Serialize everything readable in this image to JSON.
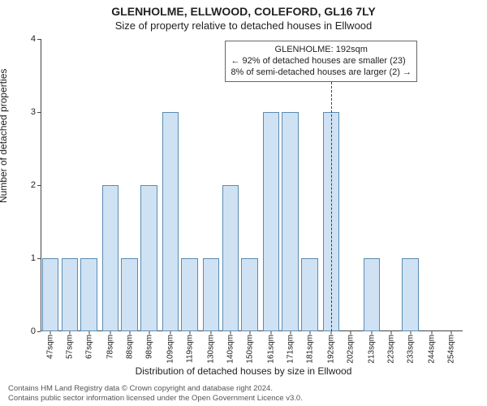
{
  "header": {
    "title": "GLENHOLME, ELLWOOD, COLEFORD, GL16 7LY",
    "subtitle": "Size of property relative to detached houses in Ellwood"
  },
  "axes": {
    "ylabel": "Number of detached properties",
    "xlabel": "Distribution of detached houses by size in Ellwood"
  },
  "chart": {
    "type": "bar",
    "xlim": [
      42,
      260
    ],
    "ylim": [
      0,
      4
    ],
    "ytick_step": 1,
    "bar_color": "#cfe2f3",
    "bar_border_color": "#5b8bb2",
    "bar_width": 0.86,
    "axis_color": "#444444",
    "background_color": "#ffffff",
    "bars": [
      {
        "x": 47,
        "y": 1,
        "label": "47sqm"
      },
      {
        "x": 57,
        "y": 1,
        "label": "57sqm"
      },
      {
        "x": 67,
        "y": 1,
        "label": "67sqm"
      },
      {
        "x": 78,
        "y": 2,
        "label": "78sqm"
      },
      {
        "x": 88,
        "y": 1,
        "label": "88sqm"
      },
      {
        "x": 98,
        "y": 2,
        "label": "98sqm"
      },
      {
        "x": 109,
        "y": 3,
        "label": "109sqm"
      },
      {
        "x": 119,
        "y": 1,
        "label": "119sqm"
      },
      {
        "x": 130,
        "y": 1,
        "label": "130sqm"
      },
      {
        "x": 140,
        "y": 2,
        "label": "140sqm"
      },
      {
        "x": 150,
        "y": 1,
        "label": "150sqm"
      },
      {
        "x": 161,
        "y": 3,
        "label": "161sqm"
      },
      {
        "x": 171,
        "y": 3,
        "label": "171sqm"
      },
      {
        "x": 181,
        "y": 1,
        "label": "181sqm"
      },
      {
        "x": 192,
        "y": 3,
        "label": "192sqm"
      },
      {
        "x": 202,
        "y": 0.05,
        "label": "202sqm"
      },
      {
        "x": 213,
        "y": 1,
        "label": "213sqm"
      },
      {
        "x": 223,
        "y": 0.05,
        "label": "223sqm"
      },
      {
        "x": 233,
        "y": 1,
        "label": "233sqm"
      },
      {
        "x": 244,
        "y": 0.05,
        "label": "244sqm"
      },
      {
        "x": 254,
        "y": 0.05,
        "label": "254sqm"
      }
    ]
  },
  "marker": {
    "x": 192,
    "color": "#c00000",
    "dash": "3,3"
  },
  "annotation": {
    "title": "GLENHOLME: 192sqm",
    "line1": "← 92% of detached houses are smaller (23)",
    "line2": "8% of semi-detached houses are larger (2) →",
    "border_color": "#666666",
    "background_color": "#ffffff",
    "fontsize": 11
  },
  "attribution": {
    "line1": "Contains HM Land Registry data © Crown copyright and database right 2024.",
    "line2": "Contains public sector information licensed under the Open Government Licence v3.0."
  }
}
